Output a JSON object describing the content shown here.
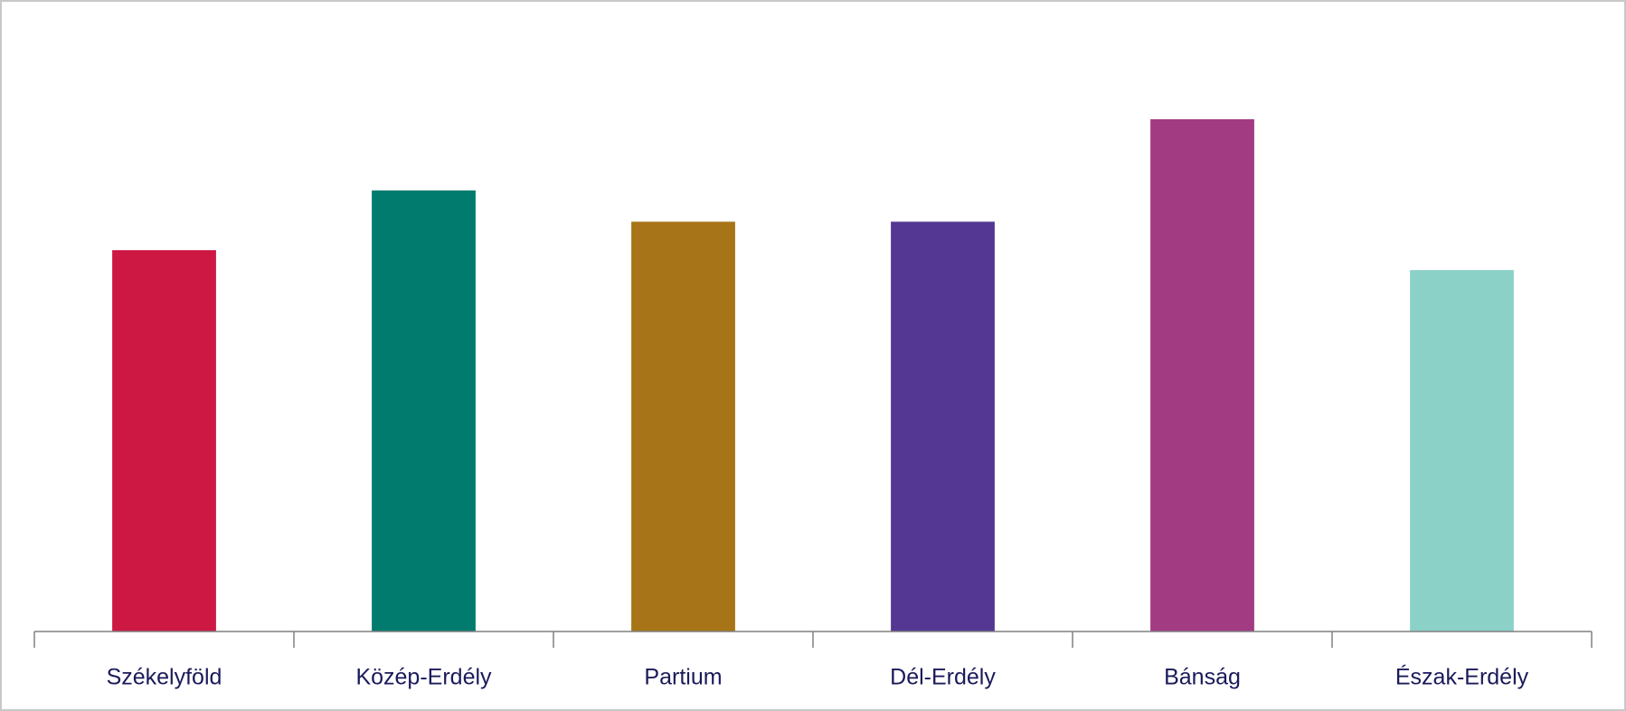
{
  "chart_data": {
    "type": "bar",
    "categories": [
      "Székelyföld",
      "Közép-Erdély",
      "Partium",
      "Dél-Erdély",
      "Bánság",
      "Észak-Erdély"
    ],
    "values": [
      67,
      77.5,
      72,
      72,
      90,
      63.5
    ],
    "colors": [
      "#cc1843",
      "#007b6e",
      "#a77517",
      "#533792",
      "#a23b82",
      "#8bd1c8"
    ],
    "ylim": [
      0,
      100
    ]
  }
}
